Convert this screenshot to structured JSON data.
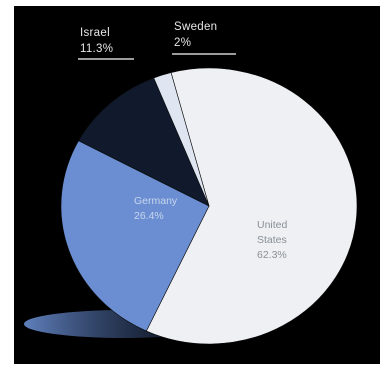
{
  "chart_data": {
    "type": "pie",
    "title": "",
    "slices": [
      {
        "label": "United States",
        "value": 62.3,
        "value_text": "62.3%",
        "color": "#eef0f3",
        "label_color": "#8a9098"
      },
      {
        "label": "Germany",
        "value": 26.4,
        "value_text": "26.4%",
        "color": "#6a8ed1",
        "label_color": "#c8d6ee"
      },
      {
        "label": "Israel",
        "value": 11.3,
        "value_text": "11.3%",
        "color": "#101a2c",
        "label_color": "#e6e6e6"
      },
      {
        "label": "Sweden",
        "value": 2,
        "value_text": "2%",
        "color": "#dfe6f2",
        "label_color": "#e6e6e6"
      }
    ],
    "legend": "none",
    "colors": {
      "background": "#000000"
    }
  }
}
